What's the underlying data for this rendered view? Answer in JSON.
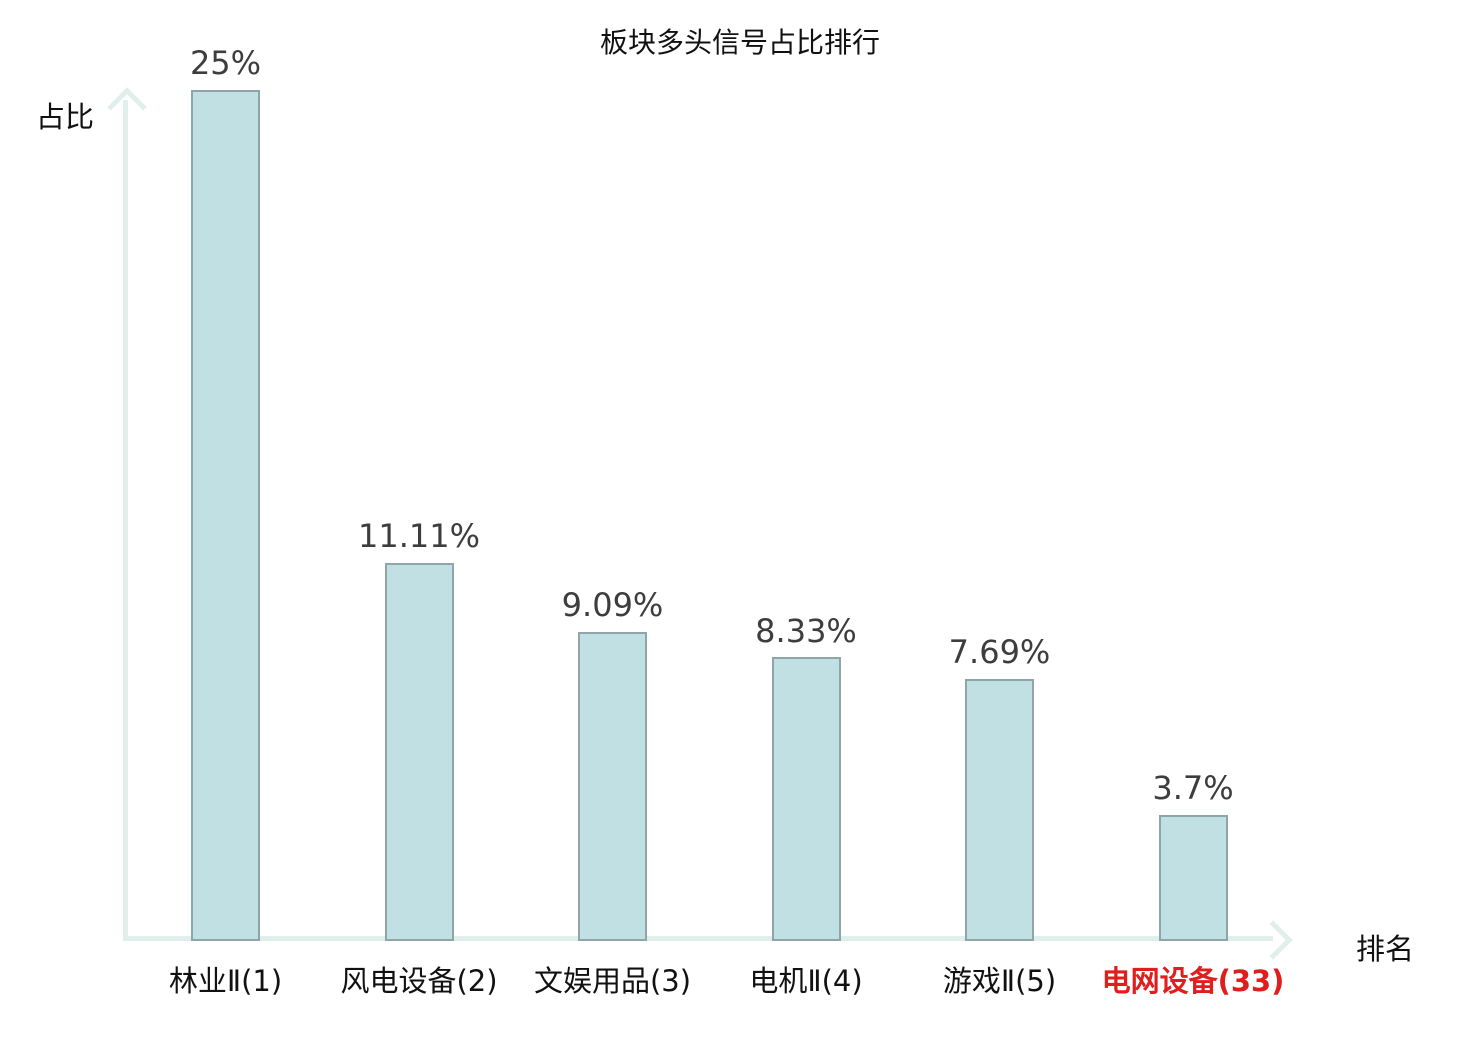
{
  "title": "板块多头信号占比排行",
  "axes": {
    "y_label": "占比",
    "x_label": "排名"
  },
  "colors": {
    "bar_fill": "#c1e0e4",
    "bar_border": "#8fa5aa",
    "axis": "#e1efec",
    "value_label": "#3d3d3d",
    "category_label": "#111111",
    "highlight": "#e01e1e",
    "title": "#111111"
  },
  "chart_data": {
    "type": "bar",
    "title": "板块多头信号占比排行",
    "xlabel": "排名",
    "ylabel": "占比",
    "categories": [
      "林业Ⅱ(1)",
      "风电设备(2)",
      "文娱用品(3)",
      "电机Ⅱ(4)",
      "游戏Ⅱ(5)",
      "电网设备(33)"
    ],
    "values": [
      25,
      11.11,
      9.09,
      8.33,
      7.69,
      3.7
    ],
    "value_labels": [
      "25%",
      "11.11%",
      "9.09%",
      "8.33%",
      "7.69%",
      "3.7%"
    ],
    "highlighted_category_index": 5,
    "highlighted_category": "电网设备(33)",
    "ylim": [
      0,
      25
    ],
    "grid": false,
    "legend": null
  }
}
